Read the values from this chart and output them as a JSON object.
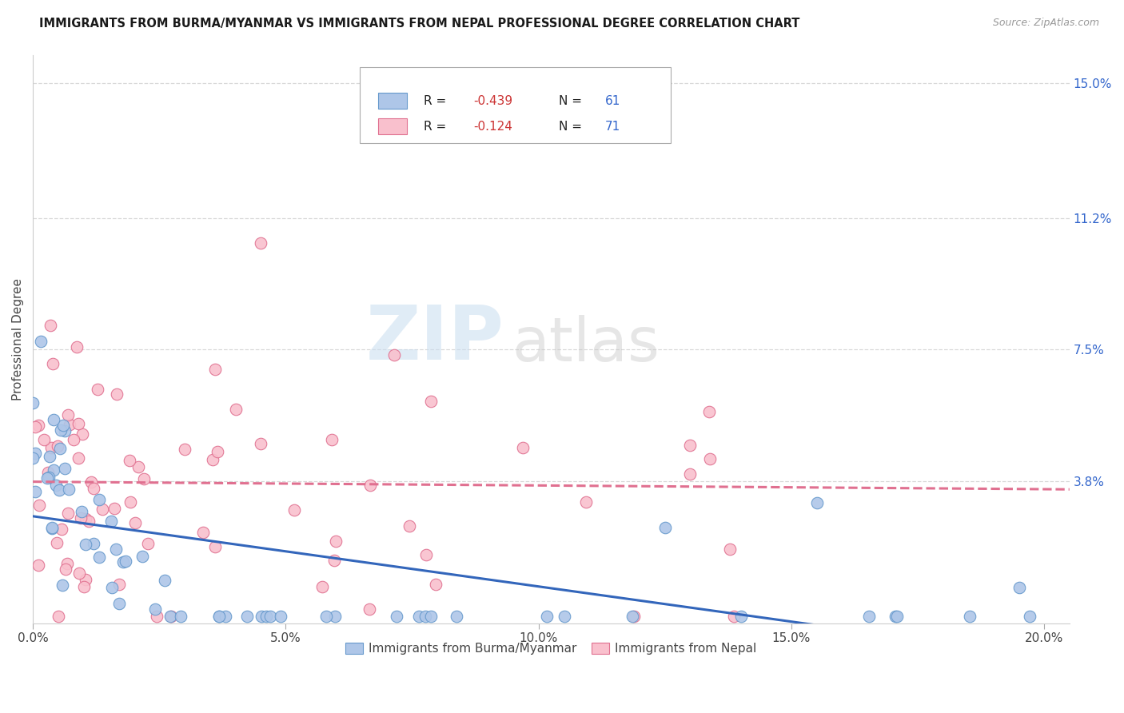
{
  "title": "IMMIGRANTS FROM BURMA/MYANMAR VS IMMIGRANTS FROM NEPAL PROFESSIONAL DEGREE CORRELATION CHART",
  "source": "Source: ZipAtlas.com",
  "xlabel_ticks": [
    "0.0%",
    "5.0%",
    "10.0%",
    "15.0%",
    "20.0%"
  ],
  "xlabel_tick_vals": [
    0.0,
    0.05,
    0.1,
    0.15,
    0.2
  ],
  "ylabel": "Professional Degree",
  "right_ytick_vals": [
    0.0,
    0.038,
    0.075,
    0.112,
    0.15
  ],
  "right_ytick_labels": [
    "",
    "3.8%",
    "7.5%",
    "11.2%",
    "15.0%"
  ],
  "xlim": [
    0.0,
    0.205
  ],
  "ylim": [
    -0.002,
    0.158
  ],
  "series_burma": {
    "color": "#aec6e8",
    "edge_color": "#6699cc",
    "trend_color": "#3366bb",
    "trend_style": "solid",
    "R": -0.439,
    "N": 61
  },
  "series_nepal": {
    "color": "#f9c0cd",
    "edge_color": "#e07090",
    "trend_color": "#e07090",
    "trend_style": "dashed",
    "R": -0.124,
    "N": 71
  },
  "watermark_zip": "ZIP",
  "watermark_atlas": "atlas",
  "background_color": "#ffffff",
  "grid_color": "#d8d8d8",
  "legend_R_color": "#cc3333",
  "legend_N_color": "#3366cc"
}
